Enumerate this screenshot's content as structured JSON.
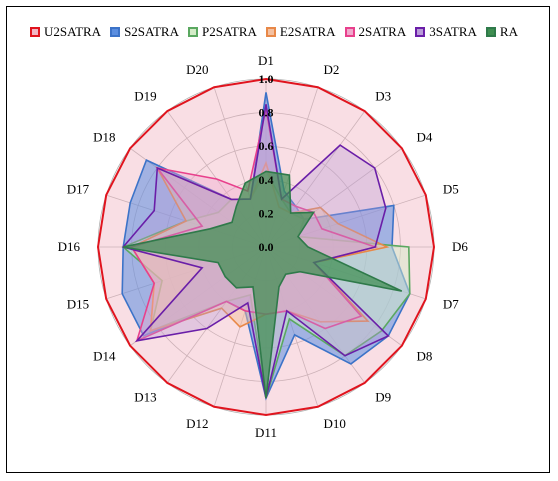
{
  "chart_data": {
    "type": "radar",
    "categories": [
      "D1",
      "D2",
      "D3",
      "D4",
      "D5",
      "D6",
      "D7",
      "D8",
      "D9",
      "D10",
      "D11",
      "D12",
      "D13",
      "D14",
      "D15",
      "D16",
      "D17",
      "D18",
      "D19",
      "D20"
    ],
    "r_ticks": [
      "0.0",
      "0.2",
      "0.4",
      "0.6",
      "0.8",
      "1.0"
    ],
    "rlim": [
      0,
      1.0
    ],
    "legend_position": "top",
    "series": [
      {
        "name": "U2SATRA",
        "stroke": "#e0141e",
        "fill": "#f2b6c4",
        "fill_opacity": 0.45,
        "values": [
          1.0,
          1.0,
          1.0,
          1.0,
          1.0,
          1.0,
          1.0,
          1.0,
          1.0,
          1.0,
          1.0,
          1.0,
          1.0,
          1.0,
          1.0,
          1.0,
          1.0,
          1.0,
          1.0,
          1.0
        ]
      },
      {
        "name": "S2SATRA",
        "stroke": "#3c73c8",
        "fill": "#5b8ee0",
        "fill_opacity": 0.55,
        "values": [
          0.92,
          0.35,
          0.3,
          0.28,
          0.8,
          0.75,
          0.9,
          0.9,
          0.86,
          0.55,
          0.9,
          0.4,
          0.4,
          0.9,
          0.9,
          0.85,
          0.85,
          0.88,
          0.35,
          0.3
        ]
      },
      {
        "name": "P2SATRA",
        "stroke": "#5aa860",
        "fill": "#d4ecc8",
        "fill_opacity": 0.5,
        "values": [
          0.45,
          0.3,
          0.25,
          0.28,
          0.2,
          0.85,
          0.9,
          0.85,
          0.8,
          0.45,
          0.9,
          0.3,
          0.4,
          0.85,
          0.65,
          0.85,
          0.5,
          0.35,
          0.35,
          0.3
        ]
      },
      {
        "name": "E2SATRA",
        "stroke": "#e88848",
        "fill": "#f4c0a0",
        "fill_opacity": 0.5,
        "values": [
          0.5,
          0.25,
          0.25,
          0.4,
          0.45,
          0.72,
          0.3,
          0.75,
          0.55,
          0.4,
          0.4,
          0.5,
          0.45,
          0.85,
          0.7,
          0.8,
          0.5,
          0.8,
          0.35,
          0.3
        ]
      },
      {
        "name": "2SATRA",
        "stroke": "#e8408c",
        "fill": "#f0a8cc",
        "fill_opacity": 0.4,
        "values": [
          0.82,
          0.3,
          0.3,
          0.35,
          0.35,
          0.65,
          0.3,
          0.7,
          0.6,
          0.4,
          0.4,
          0.4,
          0.4,
          0.95,
          0.7,
          0.8,
          0.4,
          0.8,
          0.5,
          0.35
        ]
      },
      {
        "name": "3SATRA",
        "stroke": "#6a1ea8",
        "fill": "#b89ad8",
        "fill_opacity": 0.35,
        "values": [
          0.85,
          0.3,
          0.75,
          0.8,
          0.75,
          0.65,
          0.3,
          0.9,
          0.8,
          0.4,
          0.9,
          0.35,
          0.6,
          0.95,
          0.4,
          0.85,
          0.7,
          0.8,
          0.35,
          0.3
        ]
      },
      {
        "name": "RA",
        "stroke": "#2f7a4a",
        "fill": "#3e8e50",
        "fill_opacity": 0.72,
        "values": [
          0.45,
          0.45,
          0.25,
          0.35,
          0.2,
          0.25,
          0.85,
          0.25,
          0.2,
          0.25,
          0.9,
          0.25,
          0.3,
          0.3,
          0.3,
          0.85,
          0.35,
          0.25,
          0.3,
          0.4
        ]
      }
    ]
  }
}
